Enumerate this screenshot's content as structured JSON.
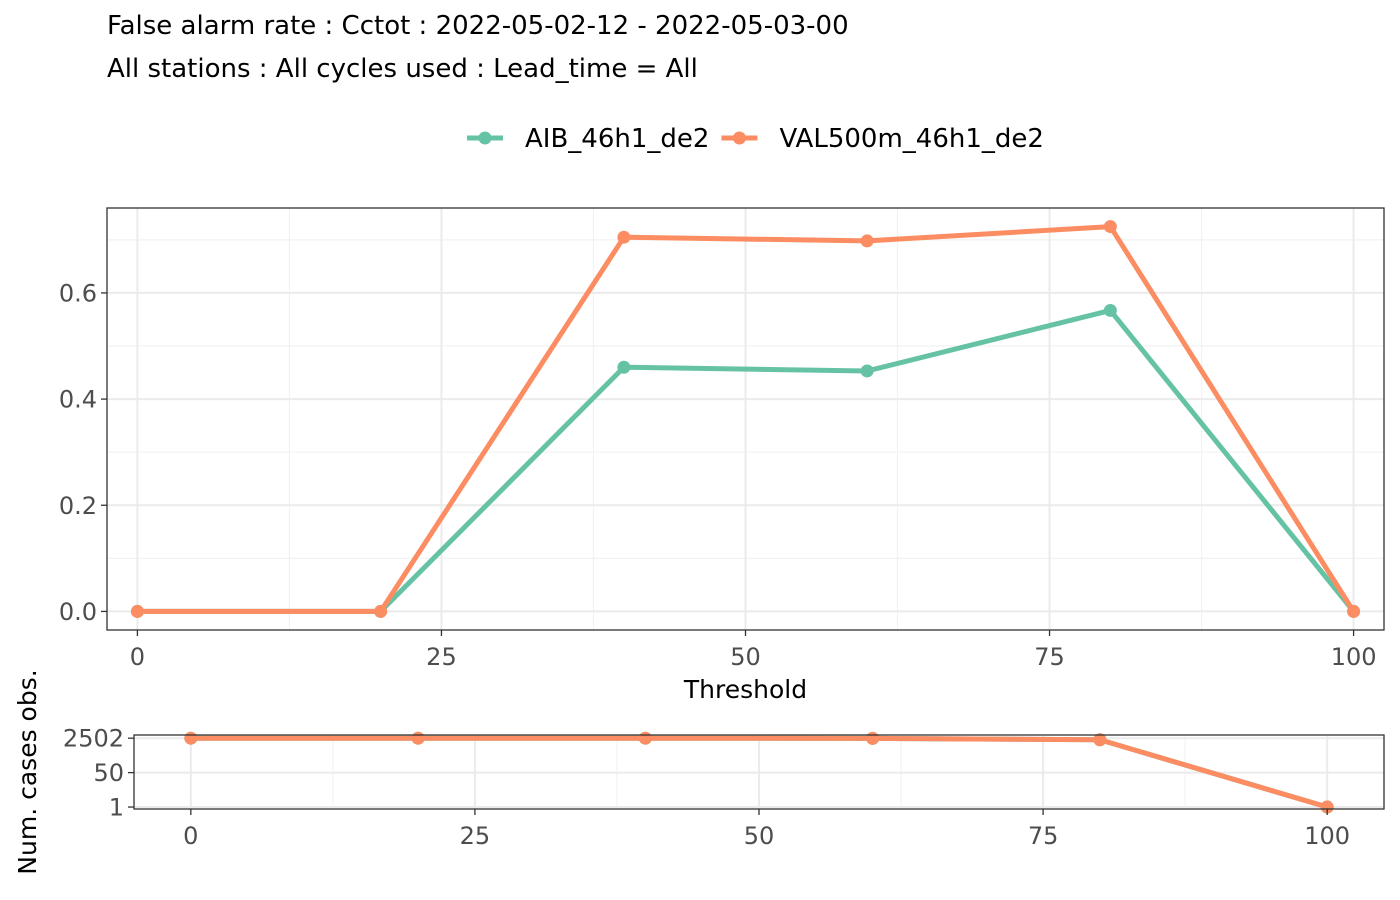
{
  "title": "False alarm rate : Cctot : 2022-05-02-12 - 2022-05-03-00",
  "subtitle": "All stations : All cycles used : Lead_time = All",
  "colors": {
    "AIB_46h1_de2": "#66c2a5",
    "VAL500m_46h1_de2": "#fc8d62"
  },
  "chart_data": [
    {
      "type": "line",
      "xlabel": "Threshold",
      "ylabel": "",
      "xlim": [
        -2.5,
        102.5
      ],
      "ylim": [
        -0.035,
        0.76
      ],
      "xticks": [
        0,
        25,
        50,
        75,
        100
      ],
      "yticks": [
        0.0,
        0.2,
        0.4,
        0.6
      ],
      "ytick_labels": [
        "0.0",
        "0.2",
        "0.4",
        "0.6"
      ],
      "grid": true,
      "legend_position": "top",
      "x": [
        0,
        20,
        40,
        60,
        80,
        100
      ],
      "series": [
        {
          "name": "AIB_46h1_de2",
          "values": [
            0.0,
            0.0,
            0.46,
            0.453,
            0.567,
            0.0
          ]
        },
        {
          "name": "VAL500m_46h1_de2",
          "values": [
            0.0,
            0.0,
            0.705,
            0.698,
            0.725,
            0.0
          ]
        }
      ]
    },
    {
      "type": "line",
      "xlabel": "",
      "ylabel": "Num. cases obs.",
      "scale": "log",
      "xlim": [
        -5,
        105
      ],
      "ylim": [
        0.8,
        3600
      ],
      "xticks": [
        0,
        25,
        50,
        75,
        100
      ],
      "yticks": [
        1,
        50,
        2502
      ],
      "ytick_labels": [
        "1",
        "50",
        "2502"
      ],
      "grid": true,
      "x": [
        0,
        20,
        40,
        60,
        80,
        100
      ],
      "series": [
        {
          "name": "AIB_46h1_de2",
          "values": [
            2502,
            2502,
            2502,
            2450,
            2100,
            1
          ]
        },
        {
          "name": "VAL500m_46h1_de2",
          "values": [
            2502,
            2502,
            2502,
            2450,
            2100,
            1
          ]
        }
      ]
    }
  ]
}
